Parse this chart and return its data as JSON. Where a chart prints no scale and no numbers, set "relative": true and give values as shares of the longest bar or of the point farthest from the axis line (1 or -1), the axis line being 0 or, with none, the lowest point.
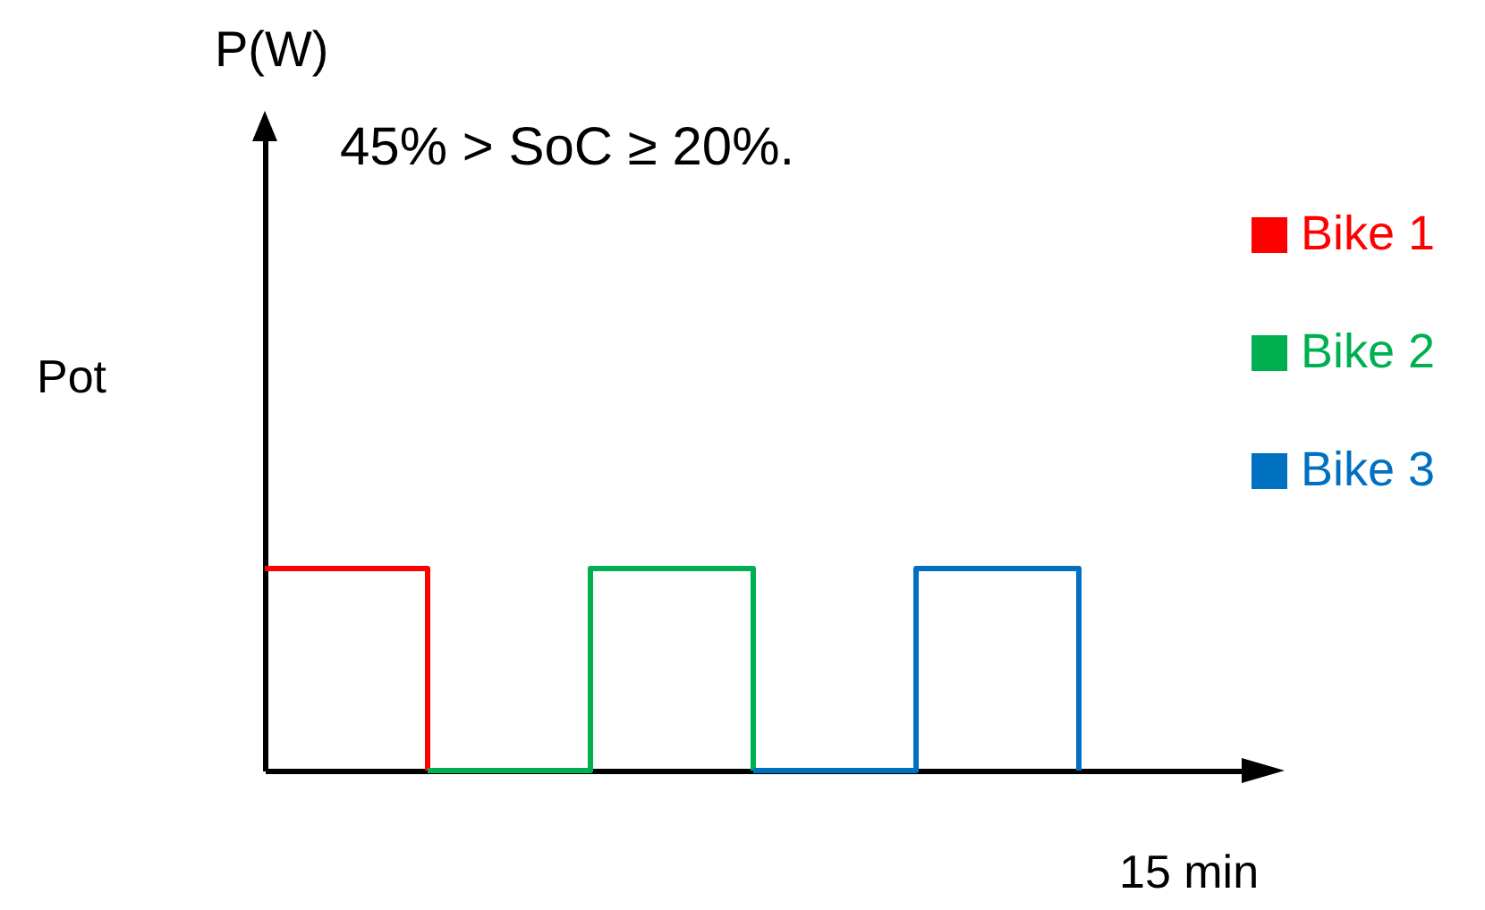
{
  "chart_data": {
    "type": "step",
    "title": "45% > SoC ≥ 20%.",
    "ylabel": "Pot",
    "xlabel": "15 min",
    "annotations": [
      "P(W)"
    ],
    "relative": true,
    "legend": "right",
    "categories": [
      null,
      null,
      null,
      null,
      null,
      null,
      null
    ],
    "series": [
      {
        "name": "Bike 1",
        "color": "#ff0000",
        "values": [
          1,
          0,
          null,
          null,
          null,
          null,
          null
        ]
      },
      {
        "name": "Bike 2",
        "color": "#00b050",
        "values": [
          null,
          0,
          1,
          0,
          null,
          null,
          null
        ]
      },
      {
        "name": "Bike 3",
        "color": "#0070c0",
        "values": [
          null,
          null,
          null,
          0,
          1,
          0,
          null
        ]
      }
    ]
  }
}
